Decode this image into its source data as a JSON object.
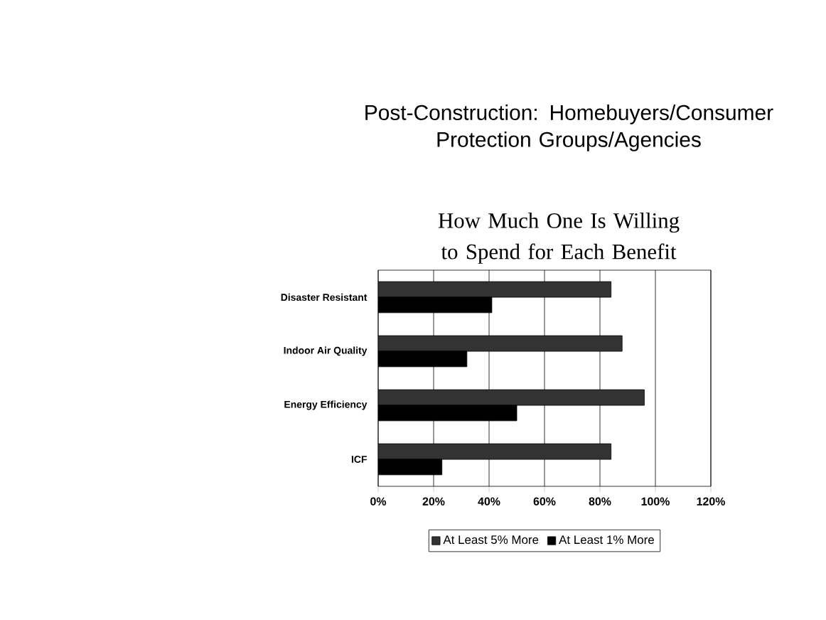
{
  "chart_data": {
    "type": "bar",
    "orientation": "horizontal",
    "title": "Post-Construction: Homebuyers/Consumer Protection Groups/Agencies",
    "subtitle": "How Much One Is Willing to Spend for Each Benefit",
    "categories": [
      "Disaster Resistant",
      "Indoor Air Quality",
      "Energy Efficiency",
      "ICF"
    ],
    "series": [
      {
        "name": "At Least 5% More",
        "color": "#333333",
        "values": [
          84,
          88,
          96,
          84
        ]
      },
      {
        "name": "At Least 1% More",
        "color": "#000000",
        "values": [
          41,
          32,
          50,
          23
        ]
      }
    ],
    "xlim": [
      0,
      120
    ],
    "xticks": [
      {
        "value": 0,
        "label": "0%"
      },
      {
        "value": 20,
        "label": "20%"
      },
      {
        "value": 40,
        "label": "40%"
      },
      {
        "value": 60,
        "label": "60%"
      },
      {
        "value": 80,
        "label": "80%"
      },
      {
        "value": 100,
        "label": "100%"
      },
      {
        "value": 120,
        "label": "120%"
      }
    ],
    "grid": "x",
    "legend": "bottom"
  }
}
